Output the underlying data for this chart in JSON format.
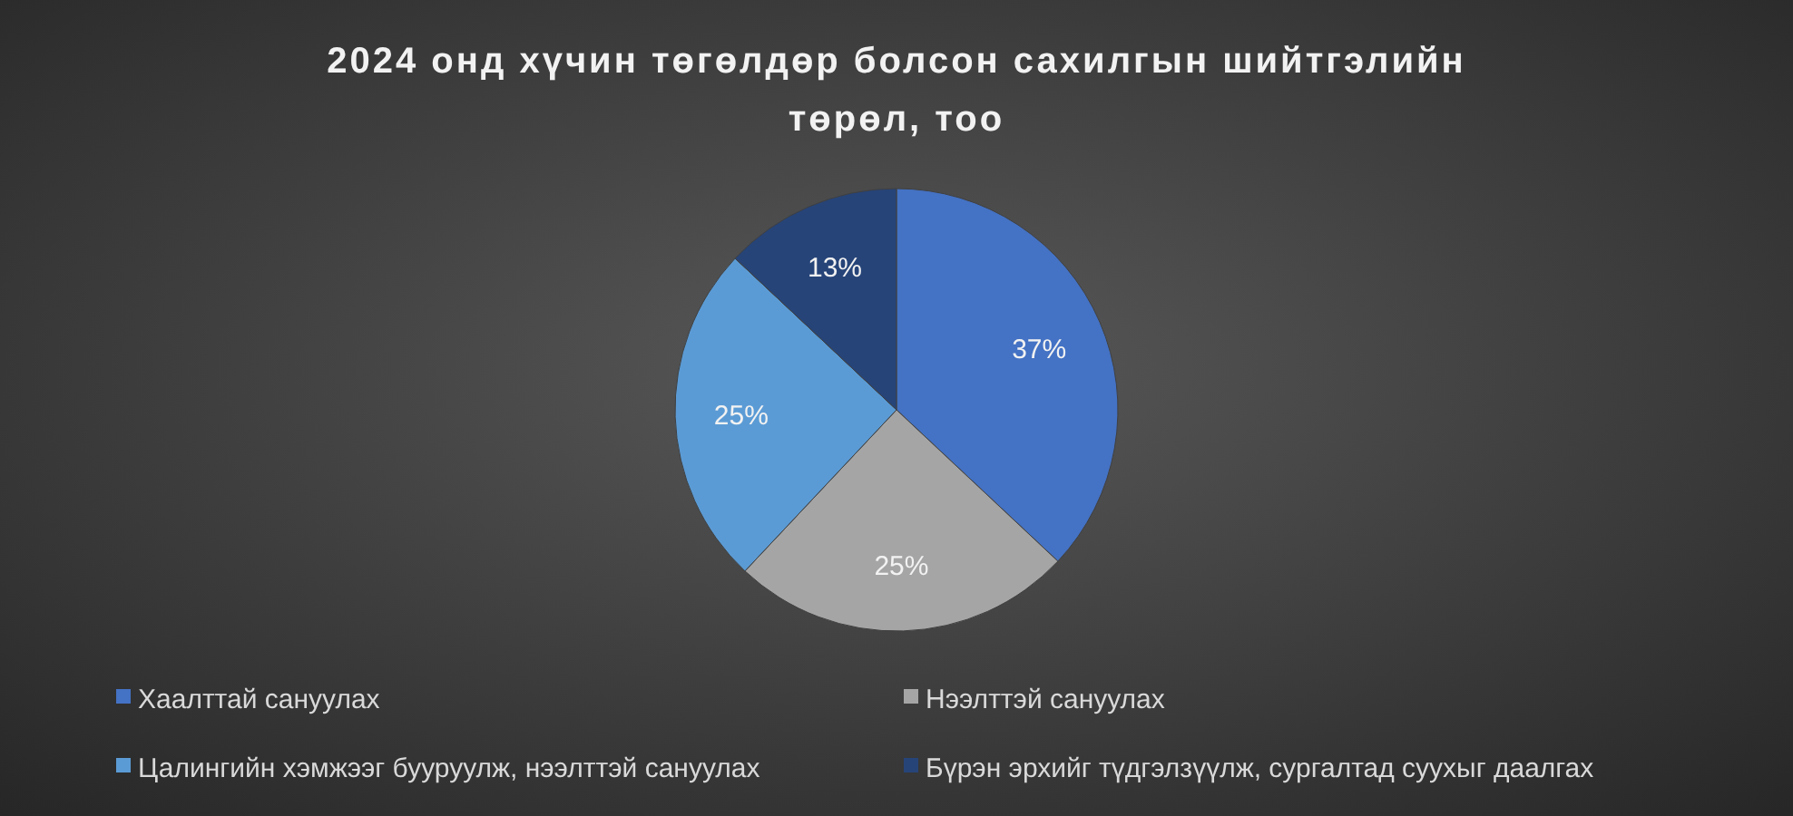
{
  "chart_data": {
    "type": "pie",
    "title": "2024 онд хүчин төгөлдөр болсон сахилгын шийтгэлийн төрөл, тоо",
    "categories": [
      "Хаалттай сануулах",
      "Нээлттэй сануулах",
      "Цалингийн хэмжээг бууруулж, нээлттэй сануулах",
      "Бүрэн эрхийг түдгэлзүүлж, сургалтад суухыг даалгах"
    ],
    "values": [
      37,
      25,
      25,
      13
    ],
    "colors": [
      "#4472c4",
      "#a5a5a5",
      "#5b9bd5",
      "#264478"
    ],
    "value_labels": [
      "37%",
      "25%",
      "25%",
      "13%"
    ],
    "legend": "bottom"
  }
}
